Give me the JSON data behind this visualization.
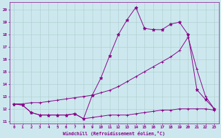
{
  "xlabel": "Windchill (Refroidissement éolien,°C)",
  "background_color": "#cce8ee",
  "grid_color": "#aacccc",
  "line_color": "#880088",
  "x_ticks": [
    0,
    1,
    2,
    3,
    4,
    5,
    6,
    7,
    8,
    9,
    10,
    11,
    12,
    13,
    14,
    15,
    16,
    17,
    18,
    19,
    20,
    21,
    22,
    23
  ],
  "y_ticks": [
    11,
    12,
    13,
    14,
    15,
    16,
    17,
    18,
    19,
    20
  ],
  "ylim": [
    10.8,
    20.6
  ],
  "xlim": [
    -0.5,
    23.5
  ],
  "series": [
    {
      "x": [
        0,
        1,
        2,
        3,
        4,
        5,
        6,
        7,
        8,
        9,
        10,
        11,
        12,
        13,
        14,
        15,
        16,
        17,
        18,
        19,
        20,
        21,
        22,
        23
      ],
      "y": [
        12.4,
        12.3,
        11.7,
        11.5,
        11.5,
        11.5,
        11.5,
        11.6,
        11.2,
        11.3,
        11.4,
        11.5,
        11.5,
        11.5,
        11.6,
        11.7,
        11.8,
        11.9,
        11.9,
        12.0,
        12.0,
        12.0,
        12.0,
        11.9
      ]
    },
    {
      "x": [
        0,
        1,
        2,
        3,
        4,
        5,
        6,
        7,
        8,
        9,
        10,
        11,
        12,
        13,
        14,
        15,
        16,
        17,
        18,
        19,
        20,
        21,
        22,
        23
      ],
      "y": [
        12.4,
        12.3,
        11.7,
        11.5,
        11.5,
        11.5,
        11.5,
        11.6,
        11.2,
        13.1,
        14.5,
        16.3,
        18.0,
        19.2,
        20.2,
        18.5,
        18.4,
        18.4,
        18.85,
        19.0,
        18.0,
        13.55,
        12.75,
        12.0
      ]
    },
    {
      "x": [
        0,
        1,
        2,
        3,
        4,
        5,
        6,
        7,
        8,
        9,
        10,
        11,
        12,
        13,
        14,
        15,
        16,
        17,
        18,
        19,
        20,
        21,
        22,
        23
      ],
      "y": [
        12.4,
        12.4,
        12.5,
        12.5,
        12.6,
        12.7,
        12.8,
        12.9,
        13.0,
        13.1,
        13.3,
        13.5,
        13.8,
        14.2,
        14.6,
        15.0,
        15.4,
        15.8,
        16.2,
        16.7,
        17.8,
        15.2,
        13.0,
        12.0
      ]
    }
  ]
}
